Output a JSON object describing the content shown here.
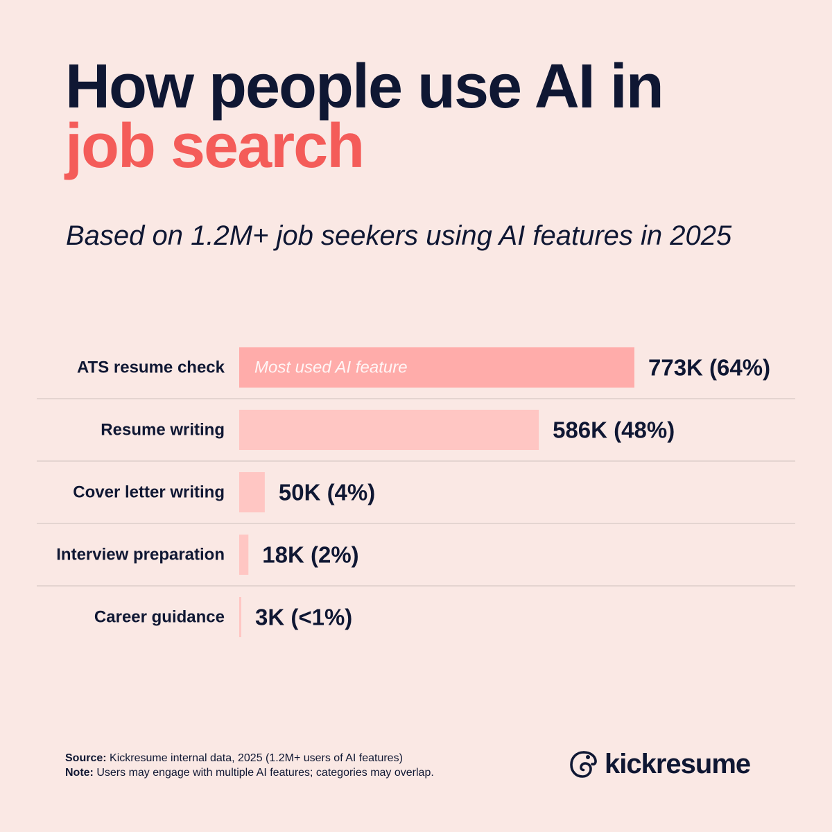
{
  "header": {
    "title_line1": "How people use AI in",
    "title_line2": "job search",
    "subtitle": "Based on 1.2M+ job seekers using AI features in 2025"
  },
  "chart_data": {
    "type": "bar",
    "orientation": "horizontal",
    "categories": [
      "ATS resume check",
      "Resume writing",
      "Cover letter writing",
      "Interview preparation",
      "Career guidance"
    ],
    "values": [
      773,
      586,
      50,
      18,
      3
    ],
    "value_labels": [
      "773K (64%)",
      "586K (48%)",
      "50K (4%)",
      "18K (2%)",
      "3K (<1%)"
    ],
    "highlight_annotation": "Most used AI feature",
    "highlight_index": 0,
    "colors": {
      "highlight": "#ffacaa",
      "bar": "#ffc6c3",
      "divider": "#dccdca"
    }
  },
  "footer": {
    "source_label": "Source:",
    "source_text": " Kickresume internal data, 2025 (1.2M+ users of AI features)",
    "note_label": "Note:",
    "note_text": " Users may engage with multiple AI features; categories may overlap.",
    "brand": "kickresume"
  }
}
